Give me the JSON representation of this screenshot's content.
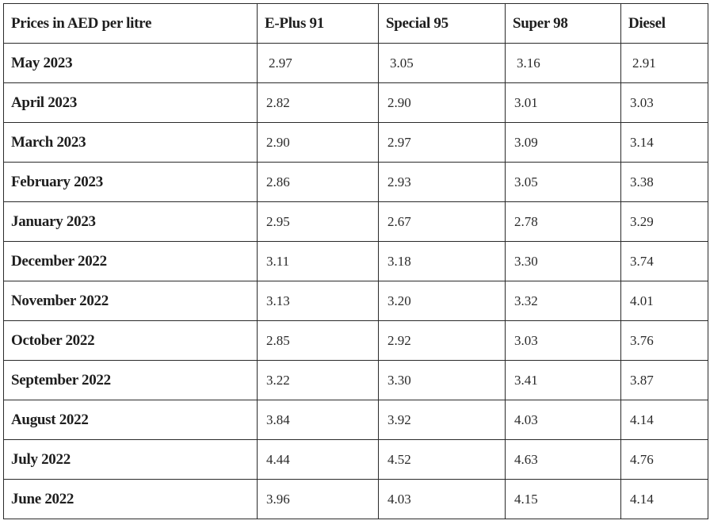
{
  "table": {
    "headers": [
      "Prices in AED per litre",
      "E-Plus 91",
      "Special 95",
      "Super 98",
      "Diesel"
    ],
    "rows": [
      [
        "May 2023",
        "2.97",
        "3.05",
        "3.16",
        "2.91"
      ],
      [
        "April 2023",
        "2.82",
        "2.90",
        "3.01",
        "3.03"
      ],
      [
        "March 2023",
        "2.90",
        "2.97",
        "3.09",
        "3.14"
      ],
      [
        "February 2023",
        "2.86",
        "2.93",
        "3.05",
        "3.38"
      ],
      [
        "January 2023",
        "2.95",
        "2.67",
        "2.78",
        "3.29"
      ],
      [
        "December 2022",
        "3.11",
        "3.18",
        "3.30",
        "3.74"
      ],
      [
        "November 2022",
        "3.13",
        "3.20",
        "3.32",
        "4.01"
      ],
      [
        "October 2022",
        "2.85",
        "2.92",
        "3.03",
        "3.76"
      ],
      [
        "September 2022",
        "3.22",
        "3.30",
        "3.41",
        "3.87"
      ],
      [
        "August 2022",
        "3.84",
        "3.92",
        "4.03",
        "4.14"
      ],
      [
        "July 2022",
        "4.44",
        "4.52",
        "4.63",
        "4.76"
      ],
      [
        "June 2022",
        "3.96",
        "4.03",
        "4.15",
        "4.14"
      ]
    ]
  }
}
